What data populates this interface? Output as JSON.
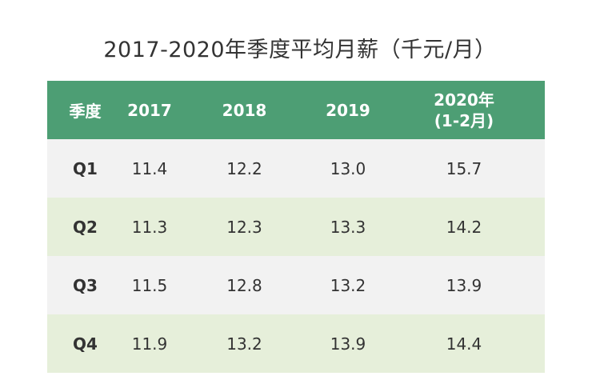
{
  "chart_data": {
    "type": "table",
    "title": "2017-2020年季度平均月薪（千元/月）",
    "columns": [
      "季度",
      "2017",
      "2018",
      "2019",
      "2020年 (1-2月)"
    ],
    "header_last": [
      "2020年",
      "(1-2月)"
    ],
    "rows": [
      {
        "label": "Q1",
        "values": [
          "11.4",
          "12.2",
          "13.0",
          "15.7"
        ]
      },
      {
        "label": "Q2",
        "values": [
          "11.3",
          "12.3",
          "13.3",
          "14.2"
        ]
      },
      {
        "label": "Q3",
        "values": [
          "11.5",
          "12.8",
          "13.2",
          "13.9"
        ]
      },
      {
        "label": "Q4",
        "values": [
          "11.9",
          "13.2",
          "13.9",
          "14.4"
        ]
      }
    ],
    "colors": {
      "header": "#4d9e74",
      "row_odd": "#f2f2f2",
      "row_even": "#e6efda"
    }
  }
}
